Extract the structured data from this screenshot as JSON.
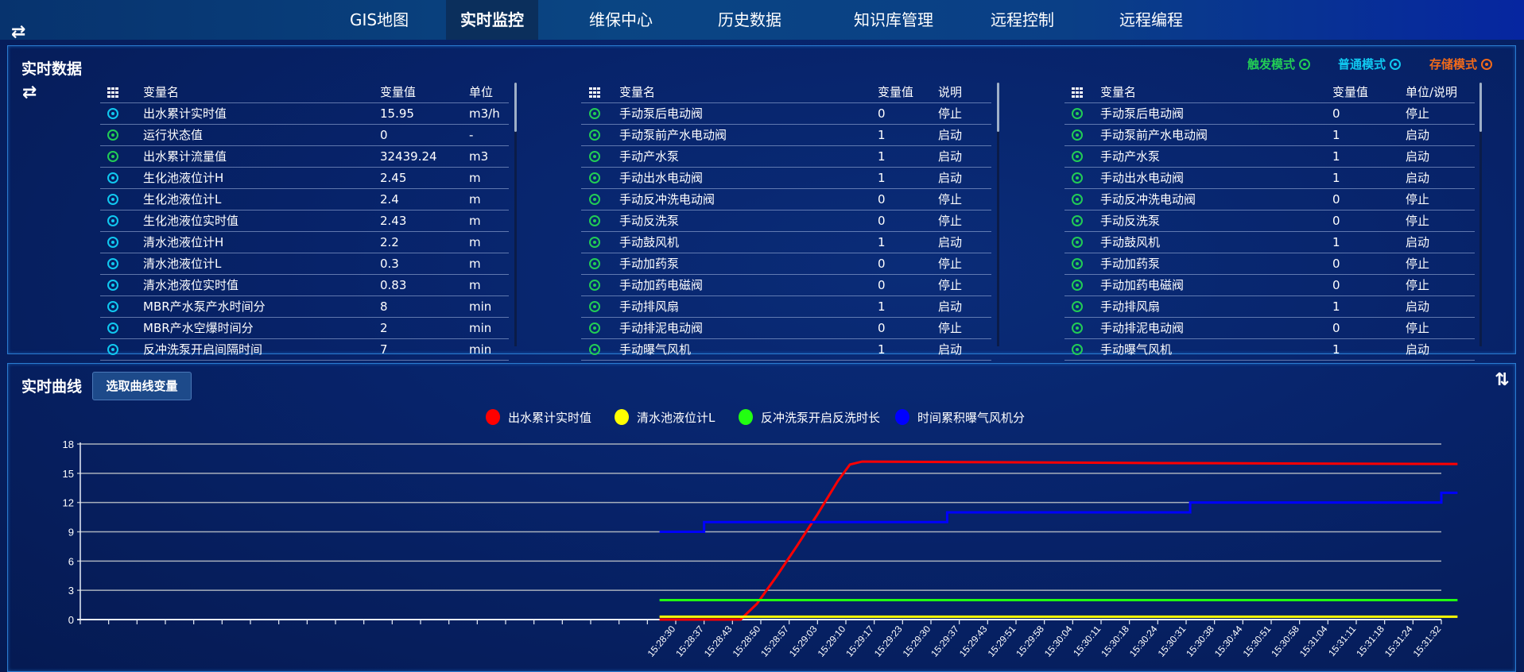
{
  "nav": {
    "items": [
      {
        "label": "GIS地图",
        "active": false
      },
      {
        "label": "实时监控",
        "active": true
      },
      {
        "label": "维保中心",
        "active": false
      },
      {
        "label": "历史数据",
        "active": false
      },
      {
        "label": "知识库管理",
        "active": false
      },
      {
        "label": "远程控制",
        "active": false
      },
      {
        "label": "远程编程",
        "active": false
      }
    ]
  },
  "realtime": {
    "title": "实时数据",
    "modes": [
      {
        "label": "触发模式",
        "color": "#22cc55"
      },
      {
        "label": "普通模式",
        "color": "#10c8f0"
      },
      {
        "label": "存储模式",
        "color": "#f06a1a"
      }
    ],
    "tables": [
      {
        "headers": [
          "变量名",
          "变量值",
          "单位"
        ],
        "rows": [
          {
            "mode": "普通模式",
            "name": "出水累计实时值",
            "value": "15.95",
            "extra": "m3/h"
          },
          {
            "mode": "触发模式",
            "name": "运行状态值",
            "value": "0",
            "extra": "-"
          },
          {
            "mode": "触发模式",
            "name": "出水累计流量值",
            "value": "32439.24",
            "extra": "m3"
          },
          {
            "mode": "普通模式",
            "name": "生化池液位计H",
            "value": "2.45",
            "extra": "m"
          },
          {
            "mode": "普通模式",
            "name": "生化池液位计L",
            "value": "2.4",
            "extra": "m"
          },
          {
            "mode": "普通模式",
            "name": "生化池液位实时值",
            "value": "2.43",
            "extra": "m"
          },
          {
            "mode": "普通模式",
            "name": "清水池液位计H",
            "value": "2.2",
            "extra": "m"
          },
          {
            "mode": "普通模式",
            "name": "清水池液位计L",
            "value": "0.3",
            "extra": "m"
          },
          {
            "mode": "普通模式",
            "name": "清水池液位实时值",
            "value": "0.83",
            "extra": "m"
          },
          {
            "mode": "普通模式",
            "name": "MBR产水泵产水时间分",
            "value": "8",
            "extra": "min"
          },
          {
            "mode": "普通模式",
            "name": "MBR产水空爆时间分",
            "value": "2",
            "extra": "min"
          },
          {
            "mode": "普通模式",
            "name": "反冲洗泵开启间隔时间",
            "value": "7",
            "extra": "min"
          }
        ]
      },
      {
        "headers": [
          "变量名",
          "变量值",
          "说明"
        ],
        "rows": [
          {
            "mode": "触发模式",
            "name": "手动泵后电动阀",
            "value": "0",
            "extra": "停止"
          },
          {
            "mode": "触发模式",
            "name": "手动泵前产水电动阀",
            "value": "1",
            "extra": "启动"
          },
          {
            "mode": "触发模式",
            "name": "手动产水泵",
            "value": "1",
            "extra": "启动"
          },
          {
            "mode": "触发模式",
            "name": "手动出水电动阀",
            "value": "1",
            "extra": "启动"
          },
          {
            "mode": "触发模式",
            "name": "手动反冲洗电动阀",
            "value": "0",
            "extra": "停止"
          },
          {
            "mode": "触发模式",
            "name": "手动反洗泵",
            "value": "0",
            "extra": "停止"
          },
          {
            "mode": "触发模式",
            "name": "手动鼓风机",
            "value": "1",
            "extra": "启动"
          },
          {
            "mode": "触发模式",
            "name": "手动加药泵",
            "value": "0",
            "extra": "停止"
          },
          {
            "mode": "触发模式",
            "name": "手动加药电磁阀",
            "value": "0",
            "extra": "停止"
          },
          {
            "mode": "触发模式",
            "name": "手动排风扇",
            "value": "1",
            "extra": "启动"
          },
          {
            "mode": "触发模式",
            "name": "手动排泥电动阀",
            "value": "0",
            "extra": "停止"
          },
          {
            "mode": "触发模式",
            "name": "手动曝气风机",
            "value": "1",
            "extra": "启动"
          }
        ]
      },
      {
        "headers": [
          "变量名",
          "变量值",
          "单位/说明"
        ],
        "rows": [
          {
            "mode": "触发模式",
            "name": "手动泵后电动阀",
            "value": "0",
            "extra": "停止"
          },
          {
            "mode": "触发模式",
            "name": "手动泵前产水电动阀",
            "value": "1",
            "extra": "启动"
          },
          {
            "mode": "触发模式",
            "name": "手动产水泵",
            "value": "1",
            "extra": "启动"
          },
          {
            "mode": "触发模式",
            "name": "手动出水电动阀",
            "value": "1",
            "extra": "启动"
          },
          {
            "mode": "触发模式",
            "name": "手动反冲洗电动阀",
            "value": "0",
            "extra": "停止"
          },
          {
            "mode": "触发模式",
            "name": "手动反洗泵",
            "value": "0",
            "extra": "停止"
          },
          {
            "mode": "触发模式",
            "name": "手动鼓风机",
            "value": "1",
            "extra": "启动"
          },
          {
            "mode": "触发模式",
            "name": "手动加药泵",
            "value": "0",
            "extra": "停止"
          },
          {
            "mode": "触发模式",
            "name": "手动加药电磁阀",
            "value": "0",
            "extra": "停止"
          },
          {
            "mode": "触发模式",
            "name": "手动排风扇",
            "value": "1",
            "extra": "启动"
          },
          {
            "mode": "触发模式",
            "name": "手动排泥电动阀",
            "value": "0",
            "extra": "停止"
          },
          {
            "mode": "触发模式",
            "name": "手动曝气风机",
            "value": "1",
            "extra": "启动"
          }
        ]
      }
    ]
  },
  "curve": {
    "title": "实时曲线",
    "select_button": "选取曲线变量"
  },
  "chart_data": {
    "type": "line",
    "ylim": [
      0,
      18
    ],
    "yticks": [
      0,
      3,
      6,
      9,
      12,
      15,
      18
    ],
    "grid": true,
    "legend_position": "top-center",
    "xticks": [
      "15:28:30",
      "15:28:37",
      "15:28:43",
      "15:28:50",
      "15:28:57",
      "15:29:03",
      "15:29:10",
      "15:29:17",
      "15:29:23",
      "15:29:30",
      "15:29:37",
      "15:29:43",
      "15:29:51",
      "15:29:58",
      "15:30:04",
      "15:30:11",
      "15:30:18",
      "15:30:24",
      "15:30:31",
      "15:30:38",
      "15:30:44",
      "15:30:51",
      "15:30:58",
      "15:31:04",
      "15:31:11",
      "15:31:18",
      "15:31:24",
      "15:31:32"
    ],
    "series": [
      {
        "name": "出水累计实时值",
        "color": "#ff0000",
        "step": false,
        "points": [
          [
            "15:28:26",
            0
          ],
          [
            "15:28:46",
            0
          ],
          [
            "15:28:50",
            1.6
          ],
          [
            "15:28:55",
            4.5
          ],
          [
            "15:29:00",
            7.6
          ],
          [
            "15:29:05",
            10.8
          ],
          [
            "15:29:10",
            14.2
          ],
          [
            "15:29:13",
            15.9
          ],
          [
            "15:29:16",
            16.2
          ],
          [
            "15:29:40",
            16.15
          ],
          [
            "15:30:30",
            16.05
          ],
          [
            "15:31:43",
            15.95
          ]
        ]
      },
      {
        "name": "清水池液位计L",
        "color": "#ffff00",
        "step": false,
        "points": [
          [
            "15:28:26",
            0.3
          ],
          [
            "15:31:43",
            0.3
          ]
        ]
      },
      {
        "name": "反冲洗泵开启反洗时长",
        "color": "#22ff11",
        "step": false,
        "points": [
          [
            "15:28:26",
            2
          ],
          [
            "15:31:43",
            2
          ]
        ]
      },
      {
        "name": "时间累积曝气风机分",
        "color": "#0000ff",
        "step": true,
        "points": [
          [
            "15:28:26",
            9
          ],
          [
            "15:28:37",
            10
          ],
          [
            "15:29:37",
            11
          ],
          [
            "15:30:37",
            12
          ],
          [
            "15:31:39",
            13
          ],
          [
            "15:31:43",
            13
          ]
        ]
      }
    ]
  }
}
